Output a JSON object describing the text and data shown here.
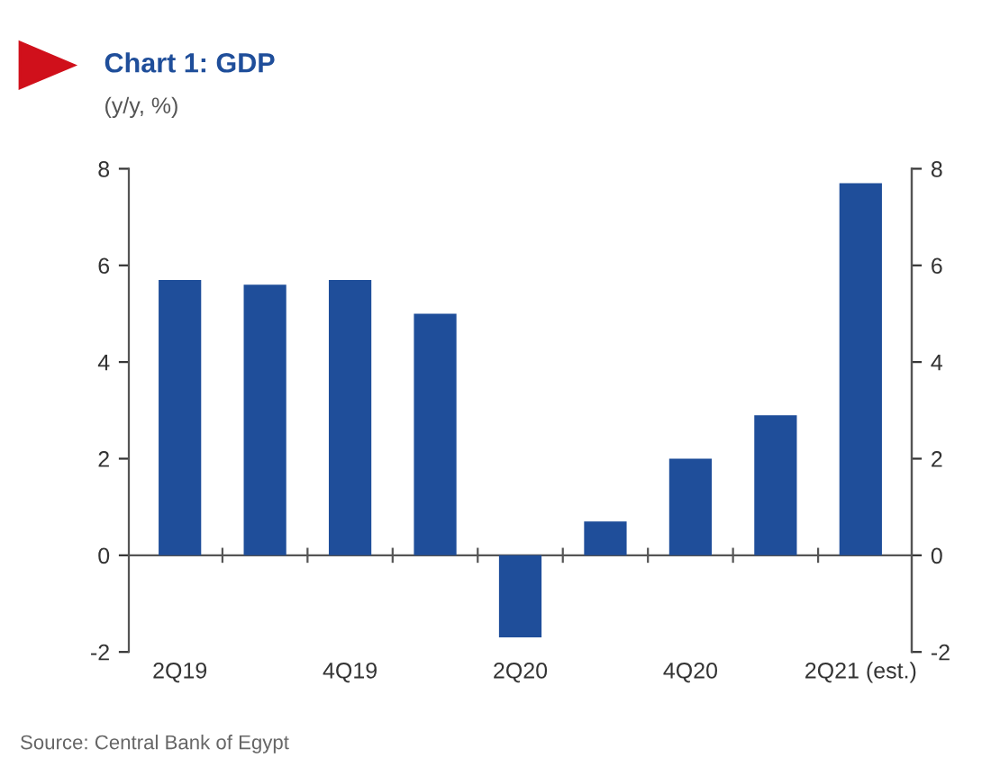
{
  "chart_data": {
    "type": "bar",
    "title": "Chart 1: GDP",
    "subtitle": "(y/y, %)",
    "categories": [
      "2Q19",
      null,
      "4Q19",
      null,
      "2Q20",
      null,
      "4Q20",
      null,
      "2Q21 (est.)"
    ],
    "values": [
      5.7,
      5.6,
      5.7,
      5.0,
      -1.7,
      0.7,
      2.0,
      2.9,
      7.7
    ],
    "color": "#1f4e9a",
    "ylim": [
      -2,
      8
    ],
    "yticks": [
      -2,
      0,
      2,
      4,
      6,
      8
    ],
    "y2lim": [
      -2,
      8
    ],
    "y2ticks": [
      -2,
      0,
      2,
      4,
      6,
      8
    ],
    "legend": false,
    "annotations": [
      "Source: Central Bank of Egypt"
    ]
  }
}
